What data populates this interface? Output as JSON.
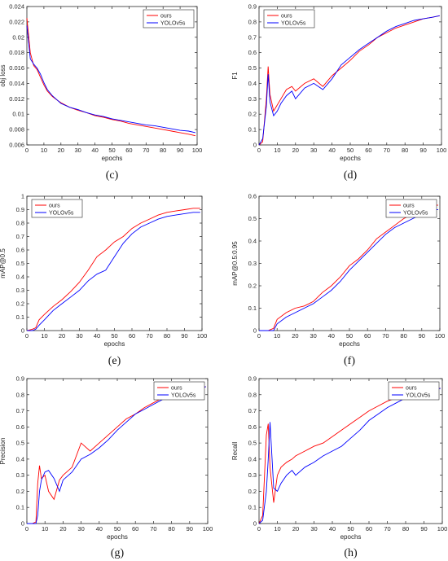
{
  "chart_data": [
    {
      "type": "line",
      "caption": "(c)",
      "xlabel": "epochs",
      "ylabel": "obj loss",
      "xlim": [
        0,
        100
      ],
      "ylim": [
        0.006,
        0.024
      ],
      "xticks": [
        "0",
        "10",
        "20",
        "30",
        "40",
        "50",
        "60",
        "70",
        "80",
        "90",
        "100"
      ],
      "yticks": [
        "0.006",
        "0.008",
        "0.01",
        "0.012",
        "0.014",
        "0.016",
        "0.018",
        "0.02",
        "0.022",
        "0.024"
      ],
      "legend": "top-right",
      "series": [
        {
          "name": "ours",
          "color": "#ff0000",
          "x": [
            0,
            2,
            4,
            6,
            8,
            10,
            12,
            15,
            18,
            20,
            25,
            30,
            35,
            40,
            45,
            50,
            55,
            60,
            65,
            70,
            75,
            80,
            85,
            90,
            95,
            99
          ],
          "y": [
            0.0225,
            0.018,
            0.0163,
            0.0158,
            0.0148,
            0.0138,
            0.013,
            0.0123,
            0.0118,
            0.0115,
            0.0109,
            0.0105,
            0.0102,
            0.0098,
            0.0096,
            0.0093,
            0.0091,
            0.0088,
            0.0086,
            0.0084,
            0.0082,
            0.008,
            0.0078,
            0.0076,
            0.0074,
            0.0072
          ]
        },
        {
          "name": "YOLOv5s",
          "color": "#0000ff",
          "x": [
            0,
            2,
            4,
            6,
            8,
            10,
            12,
            15,
            18,
            20,
            25,
            30,
            35,
            40,
            45,
            50,
            55,
            60,
            65,
            70,
            75,
            80,
            85,
            90,
            95,
            99
          ],
          "y": [
            0.0215,
            0.0172,
            0.0165,
            0.016,
            0.0152,
            0.0141,
            0.0132,
            0.0124,
            0.0118,
            0.0114,
            0.0109,
            0.0106,
            0.0102,
            0.0099,
            0.0097,
            0.0094,
            0.0092,
            0.009,
            0.0088,
            0.0086,
            0.0085,
            0.0083,
            0.0081,
            0.0079,
            0.0078,
            0.0076
          ]
        }
      ]
    },
    {
      "type": "line",
      "caption": "(d)",
      "xlabel": "epochs",
      "ylabel": "F1",
      "xlim": [
        0,
        100
      ],
      "ylim": [
        0,
        0.9
      ],
      "xticks": [
        "0",
        "10",
        "20",
        "30",
        "40",
        "50",
        "60",
        "70",
        "80",
        "90",
        "100"
      ],
      "yticks": [
        "0",
        "0.1",
        "0.2",
        "0.3",
        "0.4",
        "0.5",
        "0.6",
        "0.7",
        "0.8",
        "0.9"
      ],
      "legend": "top-left",
      "series": [
        {
          "name": "ours",
          "color": "#ff0000",
          "x": [
            0,
            2,
            4,
            5,
            6,
            8,
            10,
            12,
            15,
            18,
            20,
            25,
            30,
            35,
            40,
            45,
            50,
            55,
            60,
            65,
            70,
            75,
            80,
            85,
            90,
            95,
            99
          ],
          "y": [
            0,
            0.02,
            0.3,
            0.51,
            0.33,
            0.22,
            0.26,
            0.3,
            0.36,
            0.38,
            0.35,
            0.4,
            0.43,
            0.38,
            0.45,
            0.5,
            0.55,
            0.61,
            0.65,
            0.7,
            0.73,
            0.76,
            0.78,
            0.8,
            0.82,
            0.83,
            0.84
          ]
        },
        {
          "name": "YOLOv5s",
          "color": "#0000ff",
          "x": [
            0,
            2,
            4,
            5,
            6,
            8,
            10,
            12,
            15,
            18,
            20,
            25,
            30,
            35,
            40,
            45,
            50,
            55,
            60,
            65,
            70,
            75,
            80,
            85,
            90,
            95,
            99
          ],
          "y": [
            0,
            0.04,
            0.25,
            0.46,
            0.28,
            0.19,
            0.22,
            0.27,
            0.32,
            0.35,
            0.3,
            0.37,
            0.4,
            0.36,
            0.43,
            0.52,
            0.57,
            0.62,
            0.66,
            0.7,
            0.74,
            0.77,
            0.79,
            0.81,
            0.82,
            0.83,
            0.84
          ]
        }
      ]
    },
    {
      "type": "line",
      "caption": "(e)",
      "xlabel": "epochs",
      "ylabel": "mAP@0.5",
      "xlim": [
        0,
        100
      ],
      "ylim": [
        0,
        1
      ],
      "xticks": [
        "0",
        "10",
        "20",
        "30",
        "40",
        "50",
        "60",
        "70",
        "80",
        "90",
        "100"
      ],
      "yticks": [
        "0",
        "0.1",
        "0.2",
        "0.3",
        "0.4",
        "0.5",
        "0.6",
        "0.7",
        "0.8",
        "0.9",
        "1"
      ],
      "legend": "top-left",
      "series": [
        {
          "name": "ours",
          "color": "#ff0000",
          "x": [
            0,
            3,
            5,
            7,
            10,
            15,
            20,
            25,
            30,
            35,
            40,
            45,
            50,
            55,
            60,
            65,
            70,
            75,
            80,
            85,
            90,
            95,
            99
          ],
          "y": [
            0,
            0.01,
            0.02,
            0.08,
            0.12,
            0.18,
            0.23,
            0.29,
            0.36,
            0.45,
            0.55,
            0.6,
            0.66,
            0.7,
            0.76,
            0.8,
            0.83,
            0.86,
            0.88,
            0.89,
            0.9,
            0.91,
            0.91
          ]
        },
        {
          "name": "YOLOv5s",
          "color": "#0000ff",
          "x": [
            0,
            3,
            5,
            7,
            10,
            15,
            20,
            25,
            30,
            35,
            40,
            45,
            50,
            55,
            60,
            65,
            70,
            75,
            80,
            85,
            90,
            95,
            99
          ],
          "y": [
            0,
            0.0,
            0.01,
            0.04,
            0.08,
            0.15,
            0.2,
            0.25,
            0.3,
            0.37,
            0.42,
            0.45,
            0.55,
            0.65,
            0.72,
            0.77,
            0.8,
            0.83,
            0.85,
            0.86,
            0.87,
            0.88,
            0.88
          ]
        }
      ]
    },
    {
      "type": "line",
      "caption": "(f)",
      "xlabel": "epochs",
      "ylabel": "mAP@0.5:0.95",
      "xlim": [
        0,
        100
      ],
      "ylim": [
        0,
        0.6
      ],
      "xticks": [
        "0",
        "10",
        "20",
        "30",
        "40",
        "50",
        "60",
        "70",
        "80",
        "90",
        "100"
      ],
      "yticks": [
        "0",
        "0.1",
        "0.2",
        "0.3",
        "0.4",
        "0.5",
        "0.6"
      ],
      "legend": "top-right",
      "series": [
        {
          "name": "ours",
          "color": "#ff0000",
          "x": [
            0,
            5,
            8,
            10,
            15,
            20,
            25,
            30,
            35,
            40,
            45,
            50,
            55,
            60,
            65,
            70,
            75,
            80,
            85,
            90,
            95,
            99
          ],
          "y": [
            0,
            0.0,
            0.01,
            0.05,
            0.08,
            0.1,
            0.11,
            0.13,
            0.17,
            0.2,
            0.24,
            0.29,
            0.32,
            0.36,
            0.41,
            0.44,
            0.47,
            0.5,
            0.52,
            0.54,
            0.56,
            0.56
          ]
        },
        {
          "name": "YOLOv5s",
          "color": "#0000ff",
          "x": [
            0,
            5,
            8,
            10,
            15,
            20,
            25,
            30,
            35,
            40,
            45,
            50,
            55,
            60,
            65,
            70,
            75,
            80,
            85,
            90,
            95,
            99
          ],
          "y": [
            0,
            0.0,
            0.0,
            0.03,
            0.06,
            0.08,
            0.1,
            0.12,
            0.15,
            0.18,
            0.22,
            0.27,
            0.31,
            0.35,
            0.39,
            0.43,
            0.46,
            0.48,
            0.5,
            0.52,
            0.54,
            0.54
          ]
        }
      ]
    },
    {
      "type": "line",
      "caption": "(g)",
      "xlabel": "epochs",
      "ylabel": "Precision",
      "xlim": [
        0,
        100
      ],
      "ylim": [
        0,
        0.9
      ],
      "xticks": [
        "0",
        "10",
        "20",
        "30",
        "40",
        "50",
        "60",
        "70",
        "80",
        "90",
        "100"
      ],
      "yticks": [
        "0",
        "0.1",
        "0.2",
        "0.3",
        "0.4",
        "0.5",
        "0.6",
        "0.7",
        "0.8",
        "0.9"
      ],
      "legend": "top-right",
      "series": [
        {
          "name": "ours",
          "color": "#ff0000",
          "x": [
            0,
            3,
            5,
            6,
            7,
            8,
            10,
            12,
            15,
            18,
            20,
            25,
            30,
            35,
            40,
            45,
            50,
            55,
            60,
            65,
            70,
            75,
            80,
            85,
            90,
            95,
            99
          ],
          "y": [
            0,
            0,
            0.01,
            0.25,
            0.36,
            0.28,
            0.3,
            0.2,
            0.15,
            0.27,
            0.3,
            0.35,
            0.5,
            0.45,
            0.5,
            0.55,
            0.6,
            0.65,
            0.68,
            0.72,
            0.75,
            0.78,
            0.8,
            0.82,
            0.83,
            0.84,
            0.85
          ]
        },
        {
          "name": "YOLOv5s",
          "color": "#0000ff",
          "x": [
            0,
            3,
            5,
            6,
            7,
            8,
            10,
            12,
            15,
            18,
            20,
            25,
            30,
            35,
            40,
            45,
            50,
            55,
            60,
            65,
            70,
            75,
            80,
            85,
            90,
            95,
            99
          ],
          "y": [
            0,
            0,
            0.0,
            0.05,
            0.2,
            0.27,
            0.32,
            0.33,
            0.28,
            0.2,
            0.27,
            0.32,
            0.4,
            0.43,
            0.47,
            0.52,
            0.58,
            0.63,
            0.68,
            0.71,
            0.74,
            0.77,
            0.79,
            0.81,
            0.82,
            0.84,
            0.85
          ]
        }
      ]
    },
    {
      "type": "line",
      "caption": "(h)",
      "xlabel": "epochs",
      "ylabel": "Recall",
      "xlim": [
        0,
        100
      ],
      "ylim": [
        0,
        0.9
      ],
      "xticks": [
        "0",
        "10",
        "20",
        "30",
        "40",
        "50",
        "60",
        "70",
        "80",
        "90",
        "100"
      ],
      "yticks": [
        "0",
        "0.1",
        "0.2",
        "0.3",
        "0.4",
        "0.5",
        "0.6",
        "0.7",
        "0.8",
        "0.9"
      ],
      "legend": "top-right",
      "series": [
        {
          "name": "ours",
          "color": "#ff0000",
          "x": [
            0,
            2,
            4,
            5,
            6,
            8,
            10,
            12,
            15,
            18,
            20,
            25,
            30,
            35,
            40,
            45,
            50,
            55,
            60,
            65,
            70,
            75,
            80,
            85,
            90,
            95,
            99
          ],
          "y": [
            0,
            0.05,
            0.55,
            0.62,
            0.35,
            0.13,
            0.3,
            0.35,
            0.38,
            0.4,
            0.42,
            0.45,
            0.48,
            0.5,
            0.54,
            0.58,
            0.62,
            0.66,
            0.7,
            0.73,
            0.76,
            0.78,
            0.8,
            0.82,
            0.83,
            0.84,
            0.84
          ]
        },
        {
          "name": "YOLOv5s",
          "color": "#0000ff",
          "x": [
            0,
            2,
            4,
            5,
            6,
            8,
            10,
            12,
            15,
            18,
            20,
            25,
            30,
            35,
            40,
            45,
            50,
            55,
            60,
            65,
            70,
            75,
            80,
            85,
            90,
            95,
            99
          ],
          "y": [
            0,
            0.02,
            0.2,
            0.4,
            0.63,
            0.22,
            0.2,
            0.25,
            0.3,
            0.33,
            0.3,
            0.35,
            0.38,
            0.42,
            0.45,
            0.48,
            0.53,
            0.58,
            0.64,
            0.68,
            0.72,
            0.75,
            0.78,
            0.8,
            0.82,
            0.83,
            0.84
          ]
        }
      ]
    }
  ]
}
